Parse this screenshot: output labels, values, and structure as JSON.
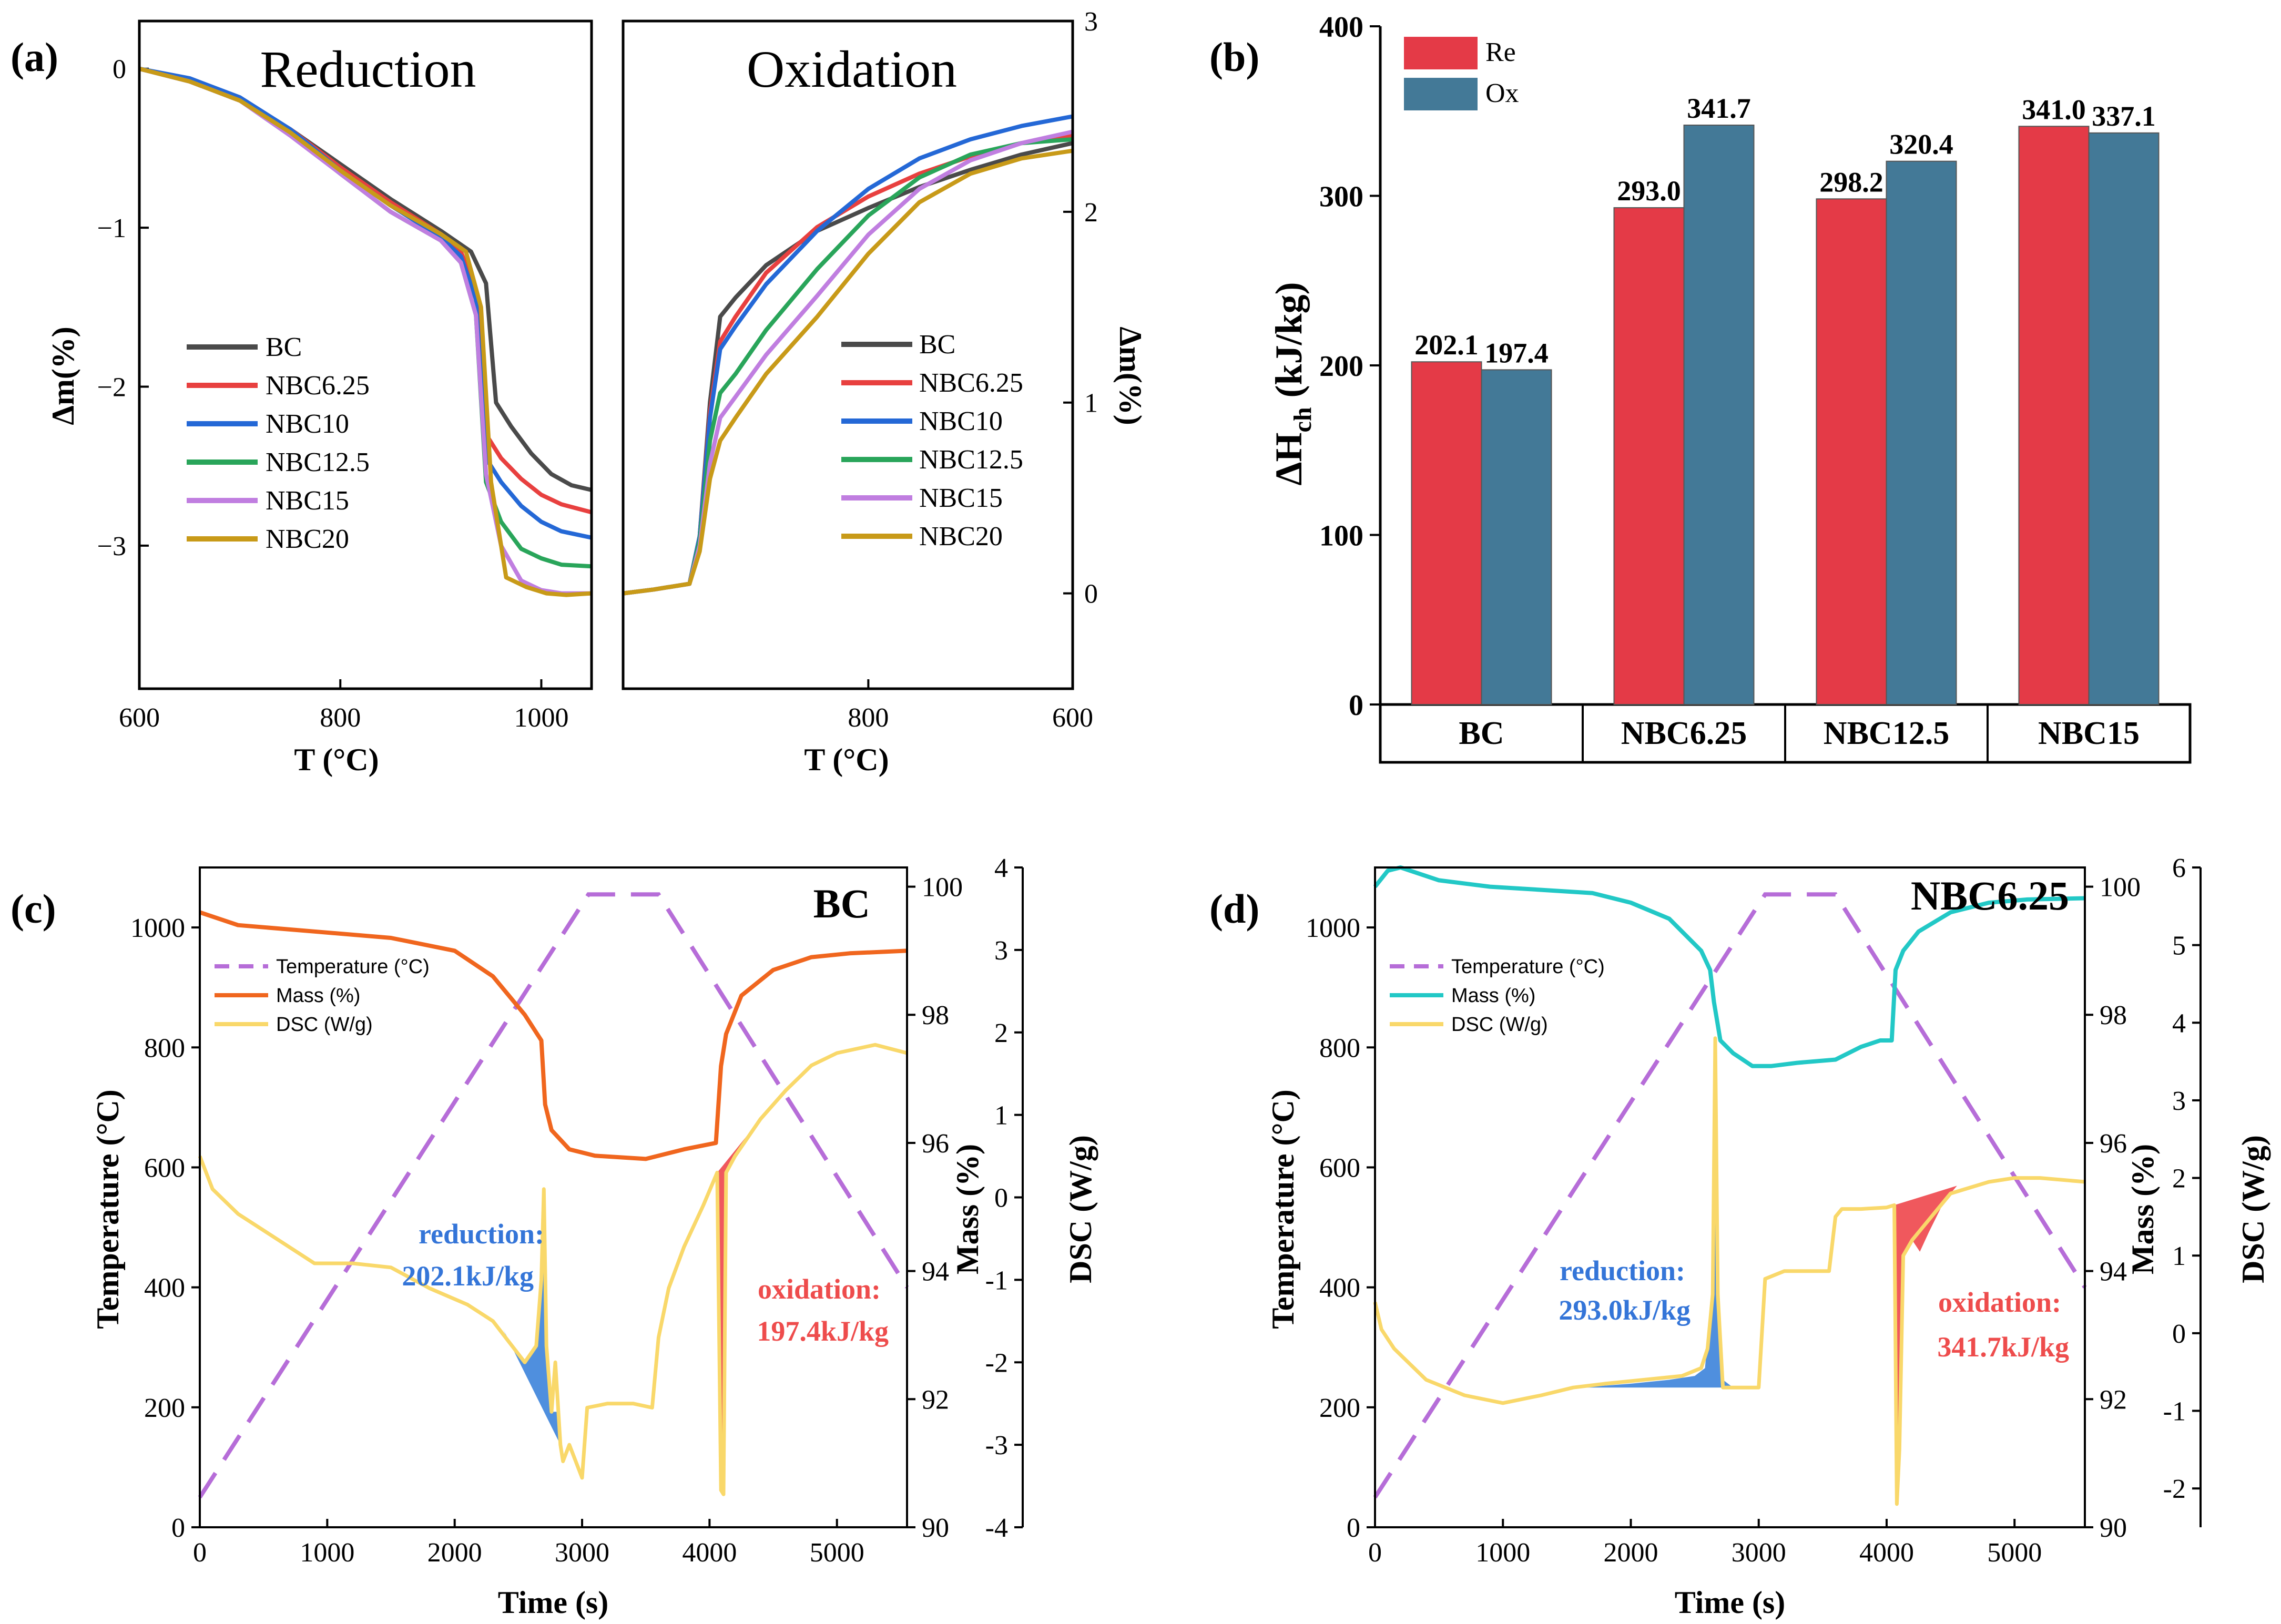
{
  "panel_labels": {
    "a": "(a)",
    "b": "(b)",
    "c": "(c)",
    "d": "(d)"
  },
  "chart_data": [
    {
      "id": "a-reduction",
      "type": "line",
      "title": "Reduction",
      "xlabel": "T (°C)",
      "ylabel": "Δm(%)",
      "xlim": [
        600,
        1050
      ],
      "ylim": [
        -3.9,
        0.3
      ],
      "xticks": [
        "600",
        "800",
        "1000"
      ],
      "yticks": [
        "0",
        "−1",
        "−2",
        "−3"
      ],
      "legend": [
        "BC",
        "NBC6.25",
        "NBC10",
        "NBC12.5",
        "NBC15",
        "NBC20"
      ],
      "series": [
        {
          "name": "BC",
          "color": "#4a4a4a",
          "x": [
            600,
            650,
            700,
            750,
            800,
            850,
            900,
            930,
            945,
            955,
            970,
            990,
            1010,
            1030,
            1050
          ],
          "y": [
            0,
            -0.08,
            -0.2,
            -0.38,
            -0.6,
            -0.82,
            -1.02,
            -1.15,
            -1.35,
            -2.1,
            -2.25,
            -2.42,
            -2.55,
            -2.62,
            -2.65
          ]
        },
        {
          "name": "NBC6.25",
          "color": "#e8403f",
          "x": [
            600,
            650,
            700,
            750,
            800,
            850,
            900,
            920,
            935,
            945,
            960,
            980,
            1000,
            1020,
            1050
          ],
          "y": [
            0,
            -0.08,
            -0.2,
            -0.38,
            -0.62,
            -0.84,
            -1.04,
            -1.15,
            -1.4,
            -2.3,
            -2.45,
            -2.58,
            -2.68,
            -2.74,
            -2.79
          ]
        },
        {
          "name": "NBC10",
          "color": "#2468d6",
          "x": [
            600,
            650,
            700,
            750,
            800,
            850,
            900,
            920,
            935,
            945,
            960,
            980,
            1000,
            1020,
            1050
          ],
          "y": [
            0,
            -0.06,
            -0.18,
            -0.38,
            -0.64,
            -0.86,
            -1.06,
            -1.18,
            -1.45,
            -2.45,
            -2.6,
            -2.75,
            -2.85,
            -2.91,
            -2.95
          ]
        },
        {
          "name": "NBC12.5",
          "color": "#29a55a",
          "x": [
            600,
            650,
            700,
            750,
            800,
            850,
            900,
            920,
            935,
            945,
            960,
            980,
            1000,
            1020,
            1050
          ],
          "y": [
            0,
            -0.08,
            -0.2,
            -0.4,
            -0.66,
            -0.9,
            -1.08,
            -1.22,
            -1.55,
            -2.6,
            -2.85,
            -3.02,
            -3.08,
            -3.12,
            -3.13
          ]
        },
        {
          "name": "NBC15",
          "color": "#c07ee0",
          "x": [
            600,
            650,
            700,
            750,
            800,
            850,
            900,
            920,
            935,
            945,
            960,
            980,
            1000,
            1020,
            1050
          ],
          "y": [
            0,
            -0.08,
            -0.2,
            -0.42,
            -0.66,
            -0.9,
            -1.08,
            -1.22,
            -1.55,
            -2.55,
            -3.0,
            -3.22,
            -3.28,
            -3.3,
            -3.3
          ]
        },
        {
          "name": "NBC20",
          "color": "#c89a18",
          "x": [
            600,
            650,
            700,
            750,
            800,
            850,
            900,
            925,
            940,
            950,
            965,
            985,
            1005,
            1025,
            1050
          ],
          "y": [
            0,
            -0.08,
            -0.2,
            -0.4,
            -0.64,
            -0.86,
            -1.04,
            -1.15,
            -1.5,
            -2.6,
            -3.2,
            -3.26,
            -3.3,
            -3.31,
            -3.3
          ]
        }
      ]
    },
    {
      "id": "a-oxidation",
      "type": "line",
      "title": "Oxidation",
      "xlabel": "T (°C)",
      "ylabel": "Δm(%)",
      "xlim": [
        1040,
        600
      ],
      "ylim": [
        -0.5,
        3.0
      ],
      "xticks": [
        "800",
        "600"
      ],
      "yticks": [
        "0",
        "1",
        "2",
        "3"
      ],
      "legend": [
        "BC",
        "NBC6.25",
        "NBC10",
        "NBC12.5",
        "NBC15",
        "NBC20"
      ],
      "series": [
        {
          "name": "BC",
          "color": "#4a4a4a",
          "x": [
            1040,
            1010,
            975,
            965,
            955,
            945,
            930,
            900,
            850,
            800,
            750,
            700,
            650,
            600
          ],
          "y": [
            0,
            0.02,
            0.05,
            0.3,
            1.0,
            1.45,
            1.55,
            1.72,
            1.9,
            2.02,
            2.13,
            2.22,
            2.3,
            2.36
          ]
        },
        {
          "name": "NBC6.25",
          "color": "#e8403f",
          "x": [
            1040,
            1010,
            975,
            965,
            955,
            945,
            930,
            900,
            850,
            800,
            750,
            700,
            650,
            600
          ],
          "y": [
            0,
            0.02,
            0.05,
            0.3,
            0.95,
            1.32,
            1.45,
            1.68,
            1.92,
            2.08,
            2.2,
            2.29,
            2.36,
            2.4
          ]
        },
        {
          "name": "NBC10",
          "color": "#2468d6",
          "x": [
            1040,
            1010,
            975,
            965,
            955,
            945,
            930,
            900,
            850,
            800,
            750,
            700,
            650,
            600
          ],
          "y": [
            0,
            0.02,
            0.05,
            0.3,
            0.92,
            1.28,
            1.4,
            1.62,
            1.9,
            2.12,
            2.28,
            2.38,
            2.45,
            2.5
          ]
        },
        {
          "name": "NBC12.5",
          "color": "#29a55a",
          "x": [
            1040,
            1010,
            975,
            965,
            955,
            945,
            930,
            900,
            850,
            800,
            750,
            700,
            650,
            600
          ],
          "y": [
            0,
            0.02,
            0.05,
            0.28,
            0.8,
            1.05,
            1.15,
            1.38,
            1.7,
            1.98,
            2.18,
            2.3,
            2.36,
            2.38
          ]
        },
        {
          "name": "NBC15",
          "color": "#c07ee0",
          "x": [
            1040,
            1010,
            975,
            965,
            955,
            945,
            930,
            900,
            850,
            800,
            750,
            700,
            650,
            600
          ],
          "y": [
            0,
            0.02,
            0.05,
            0.25,
            0.68,
            0.92,
            1.03,
            1.25,
            1.56,
            1.88,
            2.12,
            2.27,
            2.36,
            2.42
          ]
        },
        {
          "name": "NBC20",
          "color": "#c89a18",
          "x": [
            1040,
            1010,
            975,
            965,
            955,
            945,
            930,
            900,
            850,
            800,
            750,
            700,
            650,
            600
          ],
          "y": [
            0,
            0.02,
            0.05,
            0.22,
            0.6,
            0.8,
            0.92,
            1.15,
            1.45,
            1.78,
            2.05,
            2.2,
            2.28,
            2.32
          ]
        }
      ]
    },
    {
      "id": "b",
      "type": "bar",
      "categories": [
        "BC",
        "NBC6.25",
        "NBC12.5",
        "NBC15"
      ],
      "series": [
        {
          "name": "Re",
          "color": "#e43a47",
          "values": [
            202.1,
            293.0,
            298.2,
            341.0
          ],
          "labels": [
            "202.1",
            "293.0",
            "298.2",
            "341.0"
          ]
        },
        {
          "name": "Ox",
          "color": "#437997",
          "values": [
            197.4,
            341.7,
            320.4,
            337.1
          ],
          "labels": [
            "197.4",
            "341.7",
            "320.4",
            "337.1"
          ]
        }
      ],
      "ylabel_main": "ΔH",
      "ylabel_sub": "ch",
      "ylabel_unit": " (kJ/kg)",
      "ylim": [
        0,
        400
      ],
      "yticks": [
        "0",
        "100",
        "200",
        "300",
        "400"
      ]
    },
    {
      "id": "c",
      "type": "line",
      "title": "BC",
      "xlabel": "Time (s)",
      "ylabel_left": "Temperature (°C)",
      "ylabel_mass": "Mass (%)",
      "ylabel_dsc": "DSC (W/g)",
      "xlim": [
        0,
        5550
      ],
      "ylim_left": [
        0,
        1100
      ],
      "ylim_mass": [
        90,
        100.3
      ],
      "ylim_dsc": [
        -4,
        4
      ],
      "xticks": [
        "0",
        "1000",
        "2000",
        "3000",
        "4000",
        "5000"
      ],
      "yticks_left": [
        "0",
        "200",
        "400",
        "600",
        "800",
        "1000"
      ],
      "yticks_mass": [
        "90",
        "92",
        "94",
        "96",
        "98",
        "100"
      ],
      "yticks_dsc": [
        "-4",
        "-3",
        "-2",
        "-1",
        "0",
        "1",
        "2",
        "3",
        "4"
      ],
      "legend": [
        "Temperature (°C)",
        "Mass (%)",
        "DSC (W/g)"
      ],
      "annotations": {
        "reduction_label": "reduction:",
        "reduction_value": "202.1kJ/kg",
        "oxidation_label": "oxidation:",
        "oxidation_value": "197.4kJ/kg"
      },
      "temperature": {
        "color": "#b66dd8",
        "x": [
          0,
          3050,
          3600,
          5550
        ],
        "y": [
          50,
          1055,
          1055,
          400
        ]
      },
      "mass": {
        "color": "#f0661e",
        "x": [
          0,
          300,
          900,
          1500,
          2000,
          2300,
          2550,
          2680,
          2710,
          2760,
          2900,
          3100,
          3500,
          3800,
          4050,
          4090,
          4130,
          4250,
          4500,
          4800,
          5100,
          5550
        ],
        "y": [
          99.6,
          99.4,
          99.3,
          99.2,
          99.0,
          98.6,
          98.0,
          97.6,
          96.6,
          96.2,
          95.9,
          95.8,
          95.75,
          95.9,
          96.0,
          97.2,
          97.7,
          98.3,
          98.7,
          98.9,
          98.96,
          99.0
        ]
      },
      "dsc": {
        "color": "#f9d86a",
        "x": [
          0,
          100,
          300,
          600,
          900,
          1200,
          1500,
          1800,
          2100,
          2300,
          2450,
          2550,
          2640,
          2680,
          2700,
          2720,
          2760,
          2790,
          2830,
          2850,
          2900,
          2950,
          3000,
          3040,
          3200,
          3400,
          3550,
          3600,
          3680,
          3800,
          3950,
          4060,
          4090,
          4110,
          4130,
          4200,
          4400,
          4600,
          4800,
          5000,
          5300,
          5550
        ],
        "y": [
          0.5,
          0.1,
          -0.2,
          -0.5,
          -0.8,
          -0.8,
          -0.85,
          -1.1,
          -1.3,
          -1.5,
          -1.8,
          -2.0,
          -1.8,
          -1.0,
          0.1,
          -1.8,
          -2.6,
          -2.0,
          -3.0,
          -3.2,
          -3.0,
          -3.2,
          -3.4,
          -2.55,
          -2.5,
          -2.5,
          -2.55,
          -1.7,
          -1.1,
          -0.6,
          -0.1,
          0.3,
          -3.55,
          -3.6,
          0.3,
          0.5,
          0.95,
          1.3,
          1.6,
          1.75,
          1.85,
          1.75
        ]
      },
      "reduction_fill": {
        "color": "#4f8fde",
        "x": [
          2380,
          2450,
          2550,
          2640,
          2680,
          2700,
          2720,
          2760,
          2800,
          2830
        ],
        "y": [
          -1.6,
          -1.8,
          -2.0,
          -1.8,
          -1.0,
          0.1,
          -1.8,
          -2.6,
          -2.6,
          -3.0
        ],
        "base_x": [
          2830,
          2380
        ],
        "base_y": [
          -3.0,
          -1.6
        ]
      },
      "oxidation_fill": {
        "color": "#f0585d",
        "x": [
          4060,
          4090,
          4110,
          4130,
          4200,
          4300,
          4400
        ],
        "y": [
          0.3,
          -3.55,
          -3.6,
          0.3,
          0.5,
          0.72,
          0.95
        ],
        "base_x": [
          4400,
          4060
        ],
        "base_y": [
          0.95,
          0.3
        ]
      }
    },
    {
      "id": "d",
      "type": "line",
      "title": "NBC6.25",
      "xlabel": "Time (s)",
      "ylabel_left": "Temperature (°C)",
      "ylabel_mass": "Mass (%)",
      "ylabel_dsc": "DSC (W/g)",
      "xlim": [
        0,
        5550
      ],
      "ylim_left": [
        0,
        1100
      ],
      "ylim_mass": [
        90,
        100.3
      ],
      "ylim_dsc": [
        -2.5,
        6
      ],
      "xticks": [
        "0",
        "1000",
        "2000",
        "3000",
        "4000",
        "5000"
      ],
      "yticks_left": [
        "0",
        "200",
        "400",
        "600",
        "800",
        "1000"
      ],
      "yticks_mass": [
        "90",
        "92",
        "94",
        "96",
        "98",
        "100"
      ],
      "yticks_dsc": [
        "-2",
        "-1",
        "0",
        "1",
        "2",
        "3",
        "4",
        "5",
        "6"
      ],
      "legend": [
        "Temperature (°C)",
        "Mass (%)",
        "DSC (W/g)"
      ],
      "annotations": {
        "reduction_label": "reduction:",
        "reduction_value": "293.0kJ/kg",
        "oxidation_label": "oxidation:",
        "oxidation_value": "341.7kJ/kg"
      },
      "temperature": {
        "color": "#b66dd8",
        "x": [
          0,
          3050,
          3600,
          5550
        ],
        "y": [
          50,
          1055,
          1055,
          400
        ]
      },
      "mass": {
        "color": "#22c8c6",
        "x": [
          0,
          100,
          200,
          500,
          900,
          1300,
          1700,
          2000,
          2300,
          2550,
          2620,
          2650,
          2700,
          2800,
          2950,
          3100,
          3300,
          3600,
          3800,
          3950,
          4040,
          4070,
          4130,
          4250,
          4500,
          4800,
          5100,
          5550
        ],
        "y": [
          100.0,
          100.25,
          100.3,
          100.1,
          100.0,
          99.95,
          99.9,
          99.75,
          99.5,
          99.0,
          98.7,
          98.2,
          97.6,
          97.4,
          97.2,
          97.2,
          97.25,
          97.3,
          97.5,
          97.6,
          97.6,
          98.7,
          99.0,
          99.3,
          99.6,
          99.75,
          99.8,
          99.82
        ]
      },
      "dsc": {
        "color": "#f9d86a",
        "x": [
          0,
          50,
          150,
          400,
          700,
          1000,
          1300,
          1550,
          1800,
          2100,
          2400,
          2550,
          2600,
          2640,
          2660,
          2680,
          2720,
          2800,
          2900,
          2960,
          3000,
          3050,
          3200,
          3400,
          3550,
          3600,
          3650,
          3800,
          4000,
          4060,
          4080,
          4100,
          4130,
          4200,
          4300,
          4500,
          4800,
          5000,
          5200,
          5550
        ],
        "y": [
          0.4,
          0.05,
          -0.2,
          -0.6,
          -0.8,
          -0.9,
          -0.8,
          -0.7,
          -0.65,
          -0.6,
          -0.55,
          -0.45,
          -0.2,
          0.5,
          3.8,
          0.5,
          -0.7,
          -0.7,
          -0.7,
          -0.7,
          -0.7,
          0.7,
          0.8,
          0.8,
          0.8,
          1.5,
          1.6,
          1.6,
          1.62,
          1.65,
          -2.2,
          -1.5,
          1.0,
          1.2,
          1.4,
          1.8,
          1.95,
          2.0,
          2.0,
          1.95
        ]
      },
      "reduction_fill": {
        "color": "#4f8fde",
        "x": [
          1600,
          2000,
          2300,
          2500,
          2580,
          2630,
          2660,
          2690,
          2720,
          2800
        ],
        "y": [
          -0.7,
          -0.65,
          -0.6,
          -0.55,
          -0.45,
          0.5,
          3.8,
          0.5,
          -0.6,
          -0.7
        ],
        "base_x": [
          2800,
          1600
        ],
        "base_y": [
          -0.7,
          -0.7
        ]
      },
      "oxidation_fill": {
        "color": "#f0585d",
        "x": [
          4060,
          4080,
          4100,
          4130,
          4200,
          4260,
          4330,
          4450,
          4550
        ],
        "y": [
          1.65,
          -2.2,
          -1.5,
          1.0,
          1.2,
          1.05,
          1.3,
          1.7,
          1.9
        ],
        "base_x": [
          4550,
          4060
        ],
        "base_y": [
          1.9,
          1.65
        ]
      }
    }
  ]
}
